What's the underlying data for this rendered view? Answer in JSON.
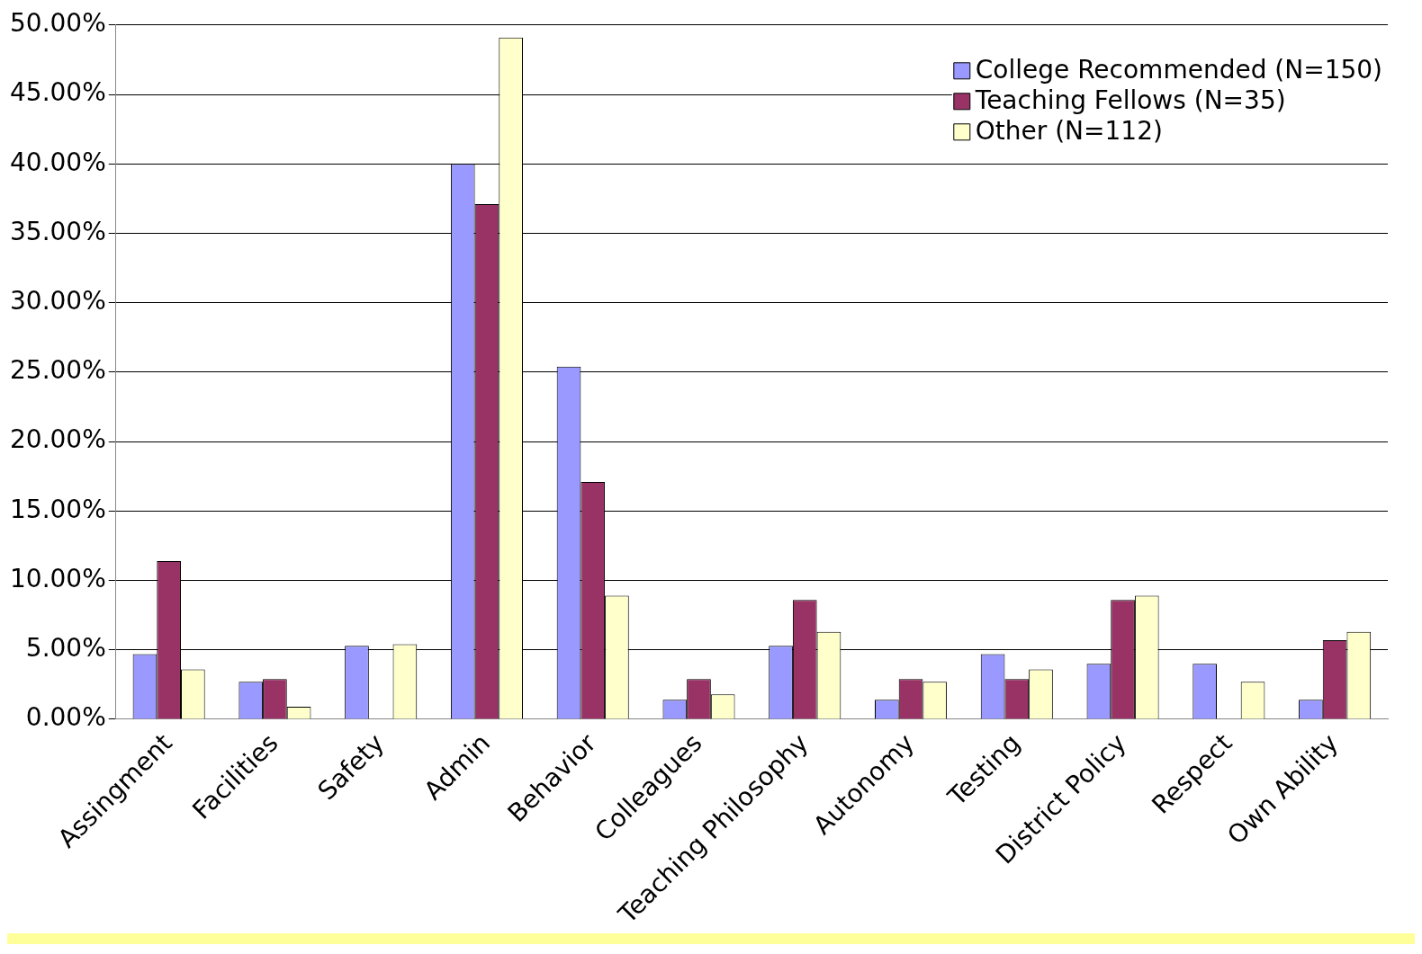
{
  "chart_data": {
    "type": "bar",
    "categories": [
      "Assingment",
      "Facilities",
      "Safety",
      "Admin",
      "Behavior",
      "Colleagues",
      "Teaching Philosophy",
      "Autonomy",
      "Testing",
      "District Policy",
      "Respect",
      "Own Ability"
    ],
    "series": [
      {
        "name": "College Recommended (N=150)",
        "color": "#9999ff",
        "values": [
          4.7,
          2.7,
          5.3,
          40.0,
          25.4,
          1.4,
          5.3,
          1.4,
          4.7,
          4.0,
          4.0,
          1.4
        ]
      },
      {
        "name": "Teaching Fellows (N=35)",
        "color": "#993366",
        "values": [
          11.4,
          2.9,
          0,
          37.1,
          17.1,
          2.9,
          8.6,
          2.9,
          2.9,
          8.6,
          0,
          5.7
        ]
      },
      {
        "name": "Other (N=112)",
        "color": "#ffffcc",
        "values": [
          3.6,
          0.9,
          5.4,
          49.1,
          8.9,
          1.8,
          6.3,
          2.7,
          3.6,
          8.9,
          2.7,
          6.3
        ]
      }
    ],
    "ylim": [
      0,
      50
    ],
    "yticks": [
      {
        "value": 0,
        "label": "0.00%"
      },
      {
        "value": 5,
        "label": "5.00%"
      },
      {
        "value": 10,
        "label": "10.00%"
      },
      {
        "value": 15,
        "label": "15.00%"
      },
      {
        "value": 20,
        "label": "20.00%"
      },
      {
        "value": 25,
        "label": "25.00%"
      },
      {
        "value": 30,
        "label": "30.00%"
      },
      {
        "value": 35,
        "label": "35.00%"
      },
      {
        "value": 40,
        "label": "40.00%"
      },
      {
        "value": 45,
        "label": "45.00%"
      },
      {
        "value": 50,
        "label": "50.00%"
      }
    ],
    "grid": "y",
    "legend": "top right"
  }
}
